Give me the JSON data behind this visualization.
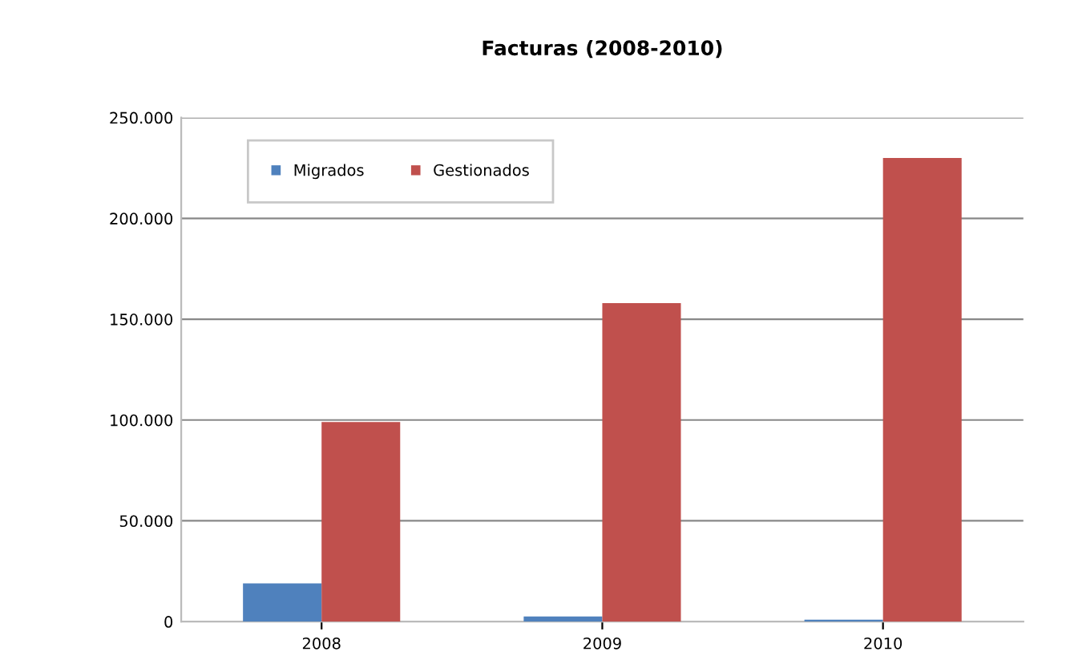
{
  "chart_data": {
    "type": "bar",
    "title": "Facturas (2008-2010)",
    "categories": [
      "2008",
      "2009",
      "2010"
    ],
    "series": [
      {
        "name": "Migrados",
        "color": "#4f81bd",
        "values": [
          19000,
          2500,
          1000
        ]
      },
      {
        "name": "Gestionados",
        "color": "#c0504d",
        "values": [
          99000,
          158000,
          230000
        ]
      }
    ],
    "ylim": [
      0,
      250000
    ],
    "yticks": [
      0,
      {
        "value": 50000,
        "label": "50.000"
      },
      {
        "value": 100000,
        "label": "100.000"
      },
      {
        "value": 150000,
        "label": "150.000"
      },
      {
        "value": 200000,
        "label": "200.000"
      },
      {
        "value": 250000,
        "label": "250.000"
      }
    ],
    "grid": "y",
    "legend": "top left"
  }
}
